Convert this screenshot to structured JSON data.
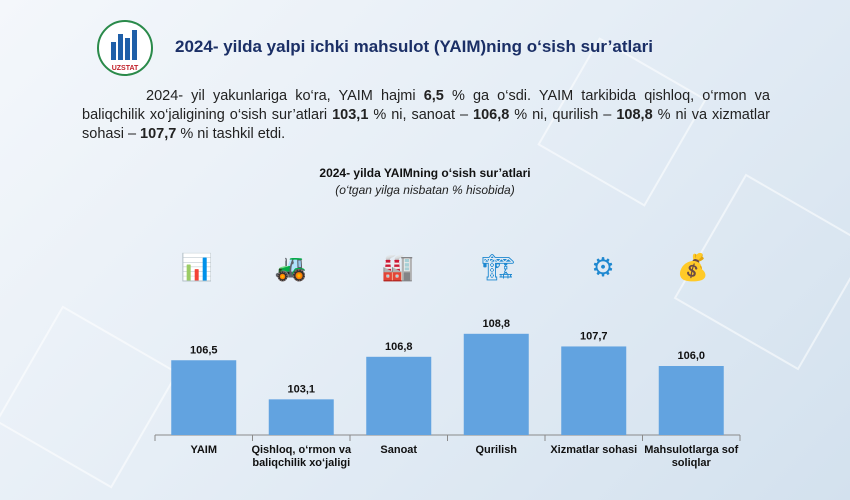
{
  "header": {
    "logo_text": "UZSTAT",
    "title": "2024- yilda yalpi ichki mahsulot (YAIM)ning o‘sish sur’atlari"
  },
  "paragraph": [
    {
      "t": "2024- yil yakunlariga ko‘ra, YAIM hajmi ",
      "b": false
    },
    {
      "t": "6,5",
      "b": true
    },
    {
      "t": " % ga o‘sdi. YAIM tarkibida qishloq, o‘rmon va baliqchilik xo‘jaligining o‘sish sur’atlari ",
      "b": false
    },
    {
      "t": "103,1",
      "b": true
    },
    {
      "t": " % ni, sanoat – ",
      "b": false
    },
    {
      "t": "106,8",
      "b": true
    },
    {
      "t": " % ni, qurilish – ",
      "b": false
    },
    {
      "t": "108,8",
      "b": true
    },
    {
      "t": " % ni va xizmatlar sohasi – ",
      "b": false
    },
    {
      "t": "107,7",
      "b": true
    },
    {
      "t": " % ni tashkil etdi.",
      "b": false
    }
  ],
  "icons": [
    "economy-chart-icon",
    "agriculture-tractor-icon",
    "factory-icon",
    "construction-excavator-icon",
    "services-gear-icon",
    "tax-coins-icon"
  ],
  "chart_data": {
    "type": "bar",
    "title": "2024- yilda YAIMning o‘sish sur’atlari",
    "subtitle": "(o‘tgan yilga nisbatan % hisobida)",
    "categories": [
      "YAIM",
      "Qishloq, o‘rmon va baliqchilik xo‘jaligi",
      "Sanoat",
      "Qurilish",
      "Xizmatlar sohasi",
      "Mahsulotlarga sof soliqlar"
    ],
    "category_lines": [
      [
        "YAIM"
      ],
      [
        "Qishloq, o‘rmon va",
        "baliqchilik xo‘jaligi"
      ],
      [
        "Sanoat"
      ],
      [
        "Qurilish"
      ],
      [
        "Xizmatlar sohasi"
      ],
      [
        "Mahsulotlarga sof",
        "soliqlar"
      ]
    ],
    "values": [
      106.5,
      103.1,
      106.8,
      108.8,
      107.7,
      106.0
    ],
    "labels": [
      "106,5",
      "103,1",
      "106,8",
      "108,8",
      "107,7",
      "106,0"
    ],
    "ylim": [
      100,
      110
    ],
    "bar_color": "#62a3e0",
    "grid": false
  }
}
